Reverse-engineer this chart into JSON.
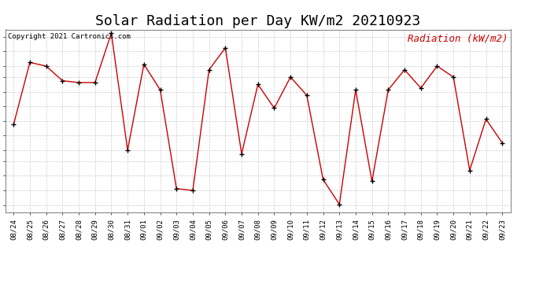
{
  "title": "Solar Radiation per Day KW/m2 20210923",
  "copyright_text": "Copyright 2021 Cartronics.com",
  "legend_label": "Radiation (kW/m2)",
  "dates": [
    "08/24",
    "08/25",
    "08/26",
    "08/27",
    "08/28",
    "08/29",
    "08/30",
    "08/31",
    "09/01",
    "09/02",
    "09/03",
    "09/04",
    "09/05",
    "09/06",
    "09/07",
    "09/08",
    "09/09",
    "09/10",
    "09/11",
    "09/12",
    "09/13",
    "09/14",
    "09/15",
    "09/16",
    "09/17",
    "09/18",
    "09/19",
    "09/20",
    "09/21",
    "09/22",
    "09/23"
  ],
  "values": [
    3.6,
    5.3,
    5.2,
    4.8,
    4.75,
    4.75,
    6.1,
    2.9,
    5.25,
    4.55,
    1.85,
    1.8,
    5.1,
    5.7,
    2.8,
    4.7,
    4.05,
    4.9,
    4.4,
    2.1,
    1.42,
    4.55,
    2.05,
    4.55,
    5.1,
    4.6,
    5.2,
    4.9,
    2.35,
    3.75,
    3.1
  ],
  "line_color": "#cc0000",
  "marker_color": "#000000",
  "background_color": "#ffffff",
  "grid_color": "#cccccc",
  "ylim": [
    1.2,
    6.2
  ],
  "yticks": [
    1.4,
    1.8,
    2.2,
    2.6,
    2.9,
    3.3,
    3.7,
    4.1,
    4.5,
    4.9,
    5.2,
    5.6,
    6.0
  ],
  "title_fontsize": 13,
  "copyright_fontsize": 6.5,
  "legend_fontsize": 9,
  "tick_fontsize": 6.5
}
